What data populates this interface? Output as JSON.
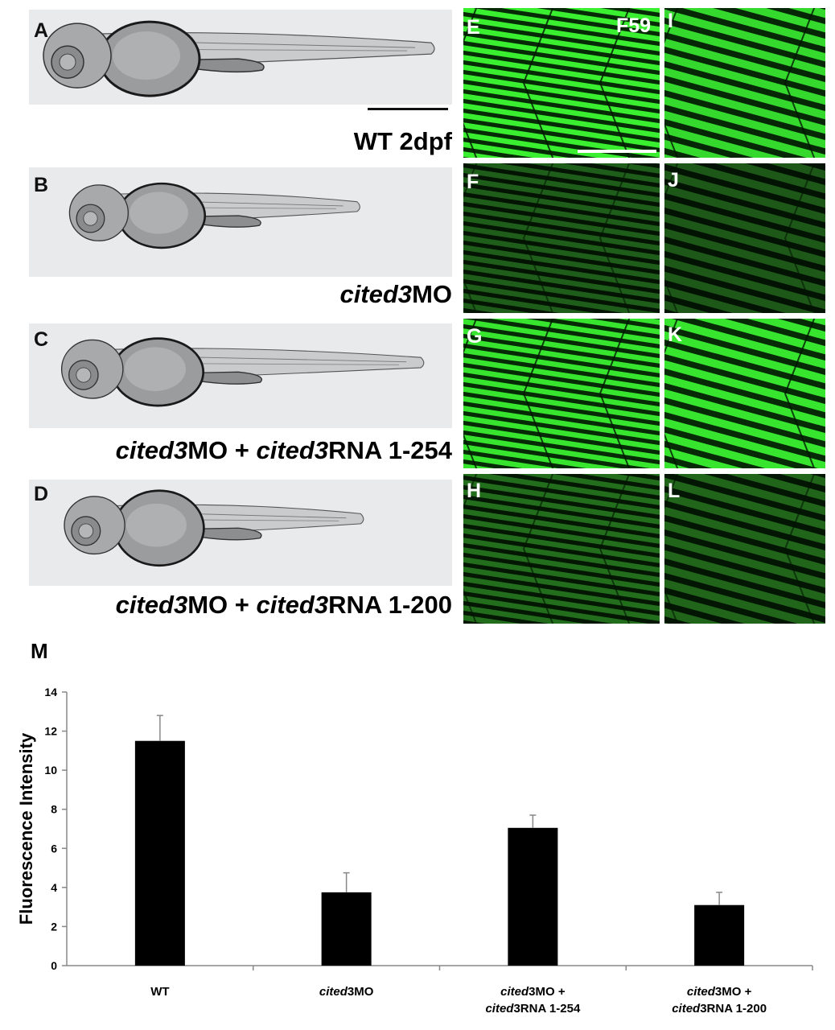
{
  "panels": {
    "embryo": [
      {
        "letter": "A",
        "label_pre": "",
        "label_italic": "",
        "label_post": "WT 2dpf",
        "label_italic2": "",
        "label_post2": ""
      },
      {
        "letter": "B",
        "label_pre": "",
        "label_italic": "cited3",
        "label_post": "MO",
        "label_italic2": "",
        "label_post2": ""
      },
      {
        "letter": "C",
        "label_pre": "",
        "label_italic": "cited3",
        "label_post": "MO + ",
        "label_italic2": "cited3",
        "label_post2": "RNA 1-254"
      },
      {
        "letter": "D",
        "label_pre": "",
        "label_italic": "cited3",
        "label_post": "MO + ",
        "label_italic2": "cited3",
        "label_post2": "RNA 1-200"
      }
    ],
    "fluorescence": [
      {
        "letter": "E",
        "intensity": 1.0
      },
      {
        "letter": "F",
        "intensity": 0.25
      },
      {
        "letter": "G",
        "intensity": 0.95
      },
      {
        "letter": "H",
        "intensity": 0.35
      },
      {
        "letter": "I",
        "intensity": 0.9
      },
      {
        "letter": "J",
        "intensity": 0.22
      },
      {
        "letter": "K",
        "intensity": 0.95
      },
      {
        "letter": "L",
        "intensity": 0.3
      }
    ],
    "antibody_label": "F59",
    "chart_letter": "M"
  },
  "colors": {
    "fluorescence_green": "#2fd32f",
    "bar": "#000000"
  },
  "chart_data": {
    "type": "bar",
    "categories": [
      [
        "WT"
      ],
      [
        "cited3MO"
      ],
      [
        "cited3MO +",
        "cited3RNA 1-254"
      ],
      [
        "cited3MO +",
        "cited3RNA 1-200"
      ]
    ],
    "values": [
      11.5,
      3.75,
      7.05,
      3.1
    ],
    "errors": [
      1.3,
      1.0,
      0.65,
      0.65
    ],
    "ylabel": "Fluorescence Intensity",
    "xlabel": "",
    "ylim": [
      0,
      14
    ],
    "yticks": [
      0,
      2,
      4,
      6,
      8,
      10,
      12,
      14
    ],
    "grid": false
  }
}
